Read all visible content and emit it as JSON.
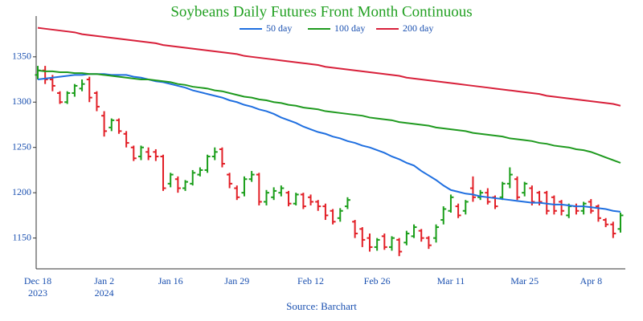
{
  "chart_data": {
    "type": "ohlc",
    "title": "Soybeans Daily Futures Front Month Continuous",
    "source": "Source: Barchart",
    "categories": [
      "Dec 18\n2023",
      null,
      null,
      null,
      null,
      null,
      null,
      null,
      null,
      "Jan 2\n2024",
      null,
      null,
      null,
      null,
      null,
      null,
      null,
      null,
      "Jan 16",
      null,
      null,
      null,
      null,
      null,
      null,
      null,
      null,
      "Jan 29",
      null,
      null,
      null,
      null,
      null,
      null,
      null,
      null,
      null,
      "Feb 12",
      null,
      null,
      null,
      null,
      null,
      null,
      null,
      null,
      "Feb 26",
      null,
      null,
      null,
      null,
      null,
      null,
      null,
      null,
      null,
      "Mar 11",
      null,
      null,
      null,
      null,
      null,
      null,
      null,
      null,
      null,
      "Mar 25",
      null,
      null,
      null,
      null,
      null,
      null,
      null,
      null,
      "Apr 8",
      null,
      null,
      null,
      null
    ],
    "open": [
      1330,
      1335,
      1325,
      1310,
      1300,
      1310,
      1315,
      1325,
      1310,
      1285,
      1272,
      1280,
      1265,
      1250,
      1240,
      1245,
      1245,
      1240,
      1210,
      1215,
      1205,
      1210,
      1220,
      1225,
      1240,
      1248,
      1220,
      1205,
      1200,
      1215,
      1220,
      1190,
      1195,
      1200,
      1200,
      1188,
      1198,
      1195,
      1190,
      1185,
      1180,
      1172,
      1185,
      1168,
      1160,
      1150,
      1140,
      1152,
      1140,
      1148,
      1145,
      1152,
      1158,
      1150,
      1150,
      1170,
      1180,
      1185,
      1180,
      1205,
      1195,
      1200,
      1195,
      1195,
      1210,
      1215,
      1200,
      1205,
      1200,
      1200,
      1195,
      1190,
      1175,
      1185,
      1180,
      1190,
      1185,
      1170,
      1165,
      1160
    ],
    "high": [
      1340,
      1340,
      1330,
      1312,
      1312,
      1320,
      1325,
      1328,
      1312,
      1290,
      1282,
      1282,
      1268,
      1252,
      1252,
      1250,
      1248,
      1242,
      1222,
      1218,
      1214,
      1225,
      1228,
      1242,
      1250,
      1250,
      1222,
      1208,
      1218,
      1224,
      1222,
      1203,
      1206,
      1208,
      1202,
      1200,
      1200,
      1198,
      1192,
      1188,
      1182,
      1183,
      1195,
      1170,
      1162,
      1155,
      1150,
      1155,
      1152,
      1150,
      1158,
      1165,
      1160,
      1152,
      1165,
      1185,
      1198,
      1188,
      1192,
      1218,
      1203,
      1205,
      1197,
      1212,
      1228,
      1218,
      1212,
      1208,
      1202,
      1202,
      1197,
      1192,
      1188,
      1188,
      1190,
      1193,
      1187,
      1172,
      1168,
      1178
    ],
    "low": [
      1325,
      1320,
      1312,
      1298,
      1298,
      1306,
      1312,
      1300,
      1290,
      1262,
      1268,
      1265,
      1250,
      1235,
      1236,
      1236,
      1235,
      1202,
      1206,
      1200,
      1202,
      1208,
      1218,
      1222,
      1236,
      1228,
      1205,
      1192,
      1196,
      1212,
      1186,
      1186,
      1192,
      1196,
      1185,
      1186,
      1182,
      1186,
      1180,
      1170,
      1165,
      1168,
      1182,
      1150,
      1140,
      1135,
      1136,
      1137,
      1136,
      1130,
      1142,
      1150,
      1146,
      1138,
      1145,
      1165,
      1178,
      1172,
      1176,
      1190,
      1192,
      1187,
      1182,
      1192,
      1205,
      1192,
      1196,
      1186,
      1186,
      1176,
      1176,
      1175,
      1172,
      1176,
      1176,
      1177,
      1168,
      1162,
      1150,
      1156
    ],
    "close": [
      1335,
      1325,
      1318,
      1300,
      1310,
      1318,
      1320,
      1305,
      1295,
      1268,
      1280,
      1268,
      1255,
      1238,
      1250,
      1240,
      1240,
      1205,
      1220,
      1205,
      1212,
      1222,
      1225,
      1240,
      1245,
      1232,
      1210,
      1195,
      1215,
      1220,
      1190,
      1200,
      1202,
      1205,
      1188,
      1198,
      1185,
      1190,
      1185,
      1175,
      1168,
      1180,
      1192,
      1155,
      1148,
      1140,
      1148,
      1140,
      1150,
      1135,
      1155,
      1162,
      1150,
      1142,
      1162,
      1182,
      1195,
      1175,
      1190,
      1195,
      1200,
      1190,
      1185,
      1210,
      1220,
      1195,
      1210,
      1190,
      1190,
      1180,
      1180,
      1180,
      1185,
      1180,
      1188,
      1180,
      1172,
      1165,
      1155,
      1175
    ],
    "up_color": "#1a9e1a",
    "down_color": "#e21f26",
    "series": [
      {
        "name": "50 day",
        "color": "#1f6fe0",
        "values": [
          1325,
          1326,
          1327,
          1328,
          1329,
          1330,
          1330,
          1331,
          1331,
          1331,
          1330,
          1330,
          1330,
          1328,
          1327,
          1325,
          1323,
          1322,
          1320,
          1318,
          1316,
          1313,
          1311,
          1309,
          1307,
          1305,
          1302,
          1300,
          1297,
          1295,
          1292,
          1290,
          1287,
          1283,
          1280,
          1277,
          1273,
          1270,
          1267,
          1265,
          1262,
          1260,
          1257,
          1255,
          1252,
          1250,
          1247,
          1244,
          1240,
          1237,
          1233,
          1230,
          1224,
          1219,
          1214,
          1208,
          1203,
          1201,
          1199,
          1198,
          1196,
          1195,
          1194,
          1193,
          1192,
          1191,
          1190,
          1189,
          1189,
          1188,
          1187,
          1187,
          1186,
          1185,
          1185,
          1184,
          1183,
          1182,
          1180,
          1179
        ]
      },
      {
        "name": "100 day",
        "color": "#1f9a1f",
        "values": [
          1335,
          1334,
          1334,
          1333,
          1333,
          1332,
          1332,
          1331,
          1331,
          1330,
          1329,
          1328,
          1327,
          1326,
          1325,
          1325,
          1324,
          1323,
          1322,
          1320,
          1319,
          1317,
          1316,
          1315,
          1313,
          1312,
          1310,
          1308,
          1306,
          1305,
          1303,
          1302,
          1300,
          1299,
          1297,
          1296,
          1294,
          1293,
          1292,
          1290,
          1289,
          1288,
          1287,
          1286,
          1285,
          1283,
          1282,
          1281,
          1280,
          1278,
          1277,
          1276,
          1275,
          1274,
          1272,
          1271,
          1270,
          1269,
          1268,
          1266,
          1265,
          1264,
          1263,
          1262,
          1260,
          1259,
          1258,
          1257,
          1255,
          1254,
          1252,
          1251,
          1250,
          1248,
          1247,
          1245,
          1242,
          1239,
          1236,
          1233
        ]
      },
      {
        "name": "200 day",
        "color": "#d8203a",
        "values": [
          1382,
          1381,
          1380,
          1379,
          1378,
          1377,
          1375,
          1374,
          1373,
          1372,
          1371,
          1370,
          1369,
          1368,
          1367,
          1366,
          1365,
          1363,
          1362,
          1361,
          1360,
          1359,
          1358,
          1357,
          1356,
          1355,
          1354,
          1353,
          1351,
          1350,
          1349,
          1348,
          1347,
          1346,
          1345,
          1344,
          1343,
          1342,
          1341,
          1339,
          1338,
          1337,
          1336,
          1335,
          1334,
          1333,
          1332,
          1331,
          1330,
          1329,
          1327,
          1326,
          1325,
          1324,
          1323,
          1322,
          1321,
          1320,
          1319,
          1318,
          1317,
          1316,
          1315,
          1314,
          1313,
          1312,
          1311,
          1310,
          1309,
          1307,
          1306,
          1305,
          1304,
          1303,
          1302,
          1301,
          1300,
          1299,
          1298,
          1296
        ]
      }
    ],
    "ylim": [
      1116,
      1395
    ],
    "yticks": [
      1150,
      1200,
      1250,
      1300,
      1350
    ],
    "grid": false
  }
}
